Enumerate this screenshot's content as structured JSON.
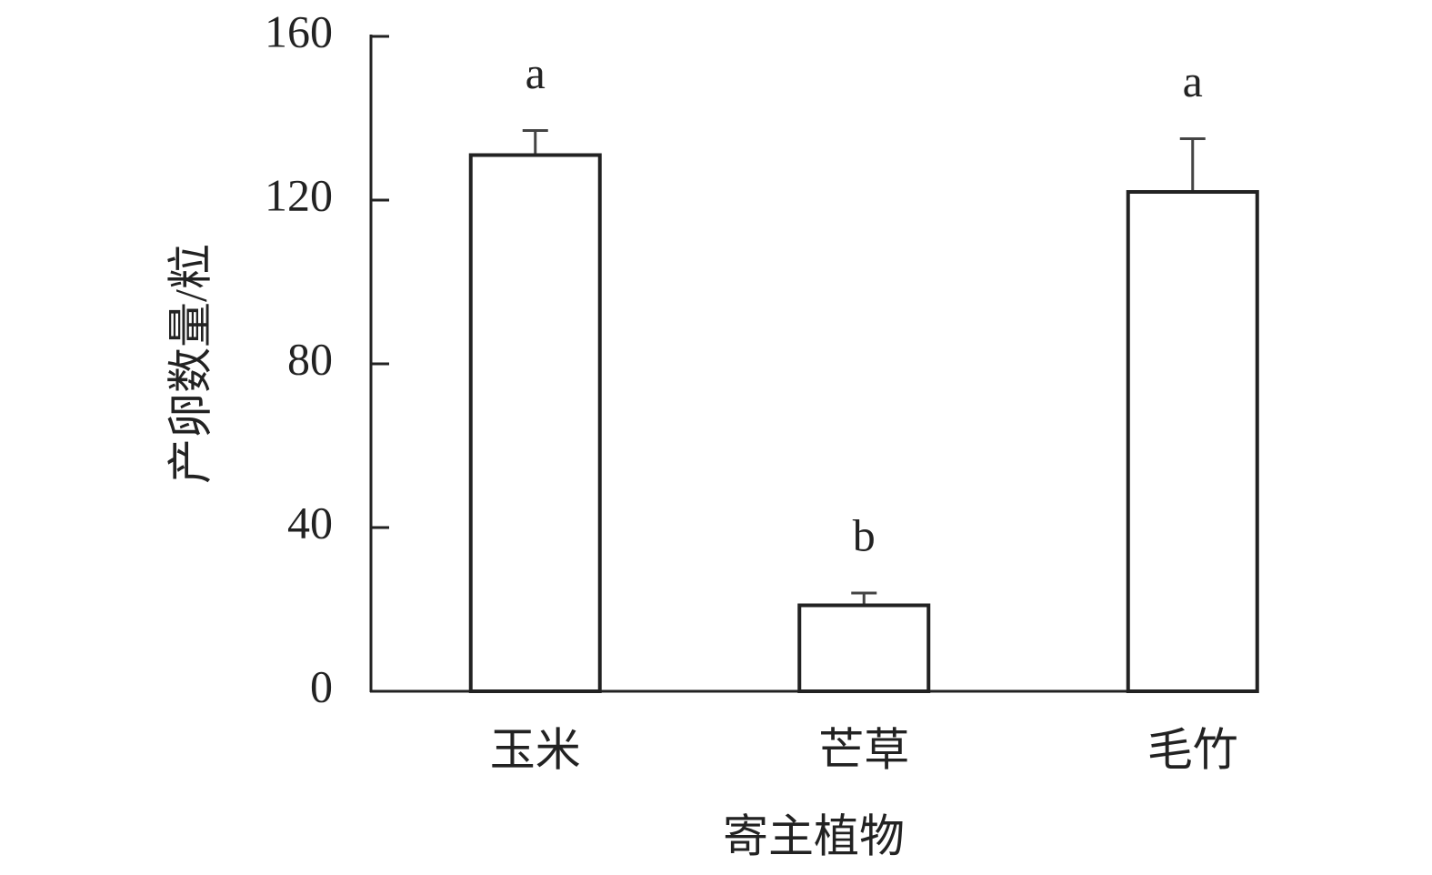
{
  "chart_data": {
    "type": "bar",
    "xlabel": "寄主植物",
    "ylabel": "产卵数量/粒",
    "categories": [
      "玉米",
      "芒草",
      "毛竹"
    ],
    "values": [
      131,
      21,
      122
    ],
    "errors": [
      6,
      3,
      13
    ],
    "significance": [
      "a",
      "b",
      "a"
    ],
    "color": "#ffffff",
    "edgecolor": "#222222",
    "ylim": [
      0,
      160
    ],
    "yticks": [
      0,
      40,
      80,
      120,
      160
    ],
    "grid": false
  }
}
